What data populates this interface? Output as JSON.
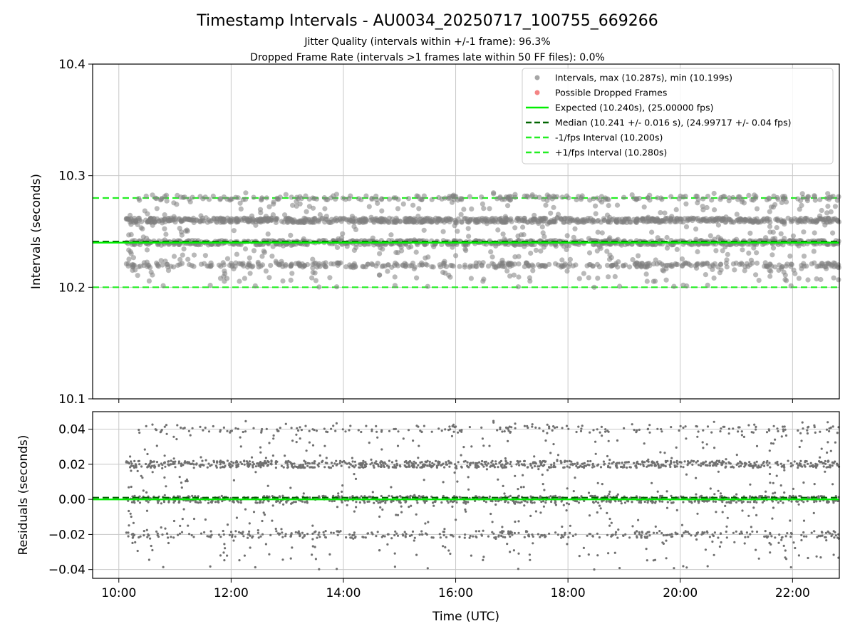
{
  "title": "Timestamp Intervals - AU0034_20250717_100755_669266",
  "subtitle_1": "Jitter Quality (intervals within +/-1 frame): 96.3%",
  "subtitle_2": "Dropped Frame Rate (intervals >1 frames late within 50 FF files): 0.0%",
  "colors": {
    "points": "#808080",
    "dropped": "#f05050",
    "expected": "#00ee00",
    "median": "#006400",
    "interval_bounds": "#22ee22",
    "grid": "#c8c8c8"
  },
  "chart_data": [
    {
      "type": "scatter",
      "name": "intervals",
      "xlabel": "",
      "ylabel": "Intervals (seconds)",
      "xlim": [
        "09:32",
        "22:50"
      ],
      "ylim": [
        10.1,
        10.4
      ],
      "yticks": [
        "10.1",
        "10.2",
        "10.3",
        "10.4"
      ],
      "xticks": [
        "10:00",
        "12:00",
        "14:00",
        "16:00",
        "18:00",
        "20:00",
        "22:00"
      ],
      "grid": true,
      "legend_position": "top-right",
      "legend": [
        {
          "kind": "marker",
          "label": "Intervals, max (10.287s), min (10.199s)",
          "color": "#808080"
        },
        {
          "kind": "marker",
          "label": "Possible Dropped Frames",
          "color": "#f05050"
        },
        {
          "kind": "solid",
          "label": "Expected (10.240s), (25.00000 fps)",
          "color": "#00ee00"
        },
        {
          "kind": "dashed",
          "label": "Median (10.241 +/- 0.016 s), (24.99717 +/- 0.04 fps)",
          "color": "#006400"
        },
        {
          "kind": "dashed",
          "label": "-1/fps Interval (10.200s)",
          "color": "#22ee22"
        },
        {
          "kind": "dashed",
          "label": "+1/fps Interval (10.280s)",
          "color": "#22ee22"
        }
      ],
      "reference_lines": {
        "expected": 10.24,
        "median": 10.241,
        "minus_one_fps": 10.2,
        "plus_one_fps": 10.28
      },
      "data_range": {
        "x_start": "10:08",
        "x_end": "22:50",
        "y_max": 10.287,
        "y_min": 10.199
      },
      "interval_levels": [
        {
          "value": 10.22,
          "share": 0.14
        },
        {
          "value": 10.24,
          "share": 0.28
        },
        {
          "value": 10.26,
          "share": 0.32
        },
        {
          "value": 10.28,
          "share": 0.07
        }
      ],
      "dropped_frames_count": 0
    },
    {
      "type": "scatter",
      "name": "residuals",
      "xlabel": "Time (UTC)",
      "ylabel": "Residuals (seconds)",
      "xlim": [
        "09:32",
        "22:50"
      ],
      "ylim": [
        -0.045,
        0.05
      ],
      "yticks": [
        "−0.04",
        "−0.02",
        "0.00",
        "0.02",
        "0.04"
      ],
      "xticks": [
        "10:00",
        "12:00",
        "14:00",
        "16:00",
        "18:00",
        "20:00",
        "22:00"
      ],
      "grid": true,
      "reference_lines": {
        "expected": 0.0,
        "median": 0.001
      },
      "residual_levels": [
        -0.02,
        0.0,
        0.02,
        0.04
      ]
    }
  ]
}
